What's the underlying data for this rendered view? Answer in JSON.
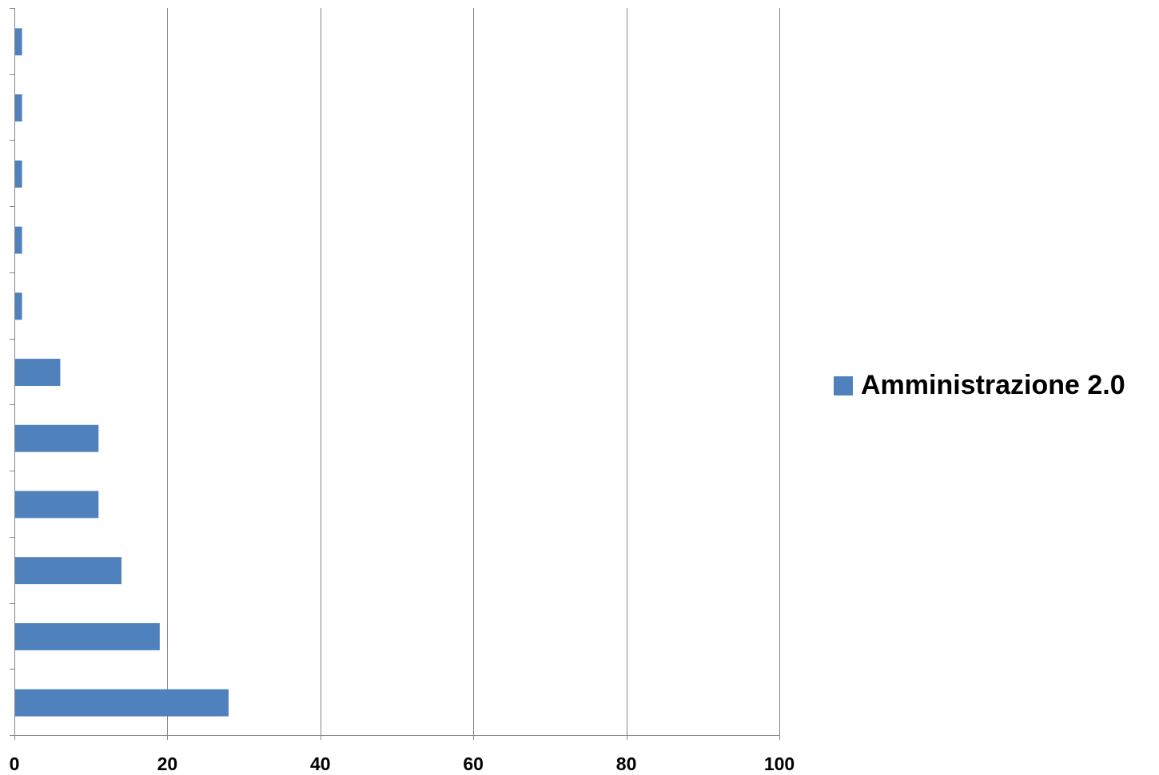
{
  "chart_data": {
    "type": "bar",
    "orientation": "horizontal",
    "categories": [
      "",
      "",
      "",
      "",
      "",
      "",
      "",
      "",
      "",
      "",
      ""
    ],
    "series": [
      {
        "name": "Amministrazione 2.0",
        "color": "#4F81BD",
        "values": [
          28,
          19,
          14,
          11,
          11,
          6,
          1,
          1,
          1,
          1,
          1
        ]
      }
    ],
    "xlim": [
      0,
      100
    ],
    "xticks": [
      0,
      20,
      40,
      60,
      80,
      100
    ],
    "xtick_labels": [
      "0",
      "20",
      "40",
      "60",
      "80",
      "100"
    ],
    "grid": "vertical",
    "gridline_color": "#868686",
    "legend_position": "right"
  }
}
